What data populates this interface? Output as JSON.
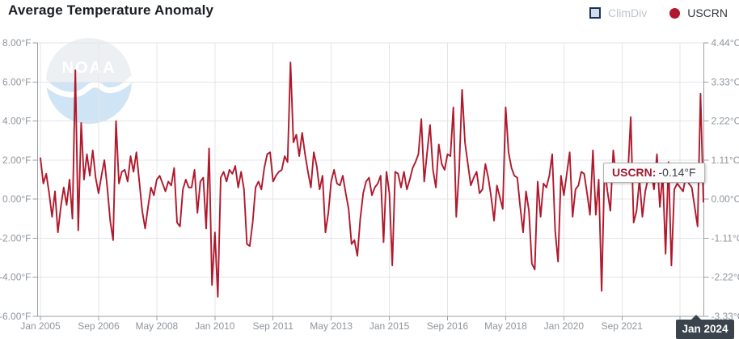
{
  "title": "Average Temperature Anomaly",
  "watermark": "NOAA",
  "legend": {
    "items": [
      {
        "id": "climdiv",
        "label": "ClimDiv",
        "swatch": "square",
        "color": "#cddcee",
        "border": "#1b3350",
        "state": "inactive"
      },
      {
        "id": "uscrn",
        "label": "USCRN",
        "swatch": "circle",
        "color": "#b0182c",
        "state": "active"
      }
    ]
  },
  "tooltip": {
    "series": "USCRN:",
    "value": "-0.14°F"
  },
  "crosshair": {
    "label": "Jan 2024"
  },
  "chart_data": {
    "type": "line",
    "title": "Average Temperature Anomaly",
    "x_start": "Jan 2005",
    "x_end": "Jan 2024",
    "x_interval": "monthly",
    "grid": true,
    "legend_position": "top-right",
    "y_left": {
      "unit": "°F",
      "range": [
        -6,
        8
      ],
      "labels": [
        "8.00°F",
        "6.00°F",
        "4.00°F",
        "2.00°F",
        "0.00°F",
        "-2.00°F",
        "-4.00°F",
        "-6.00°F"
      ]
    },
    "y_right": {
      "unit": "°C",
      "range": [
        -3.33,
        4.44
      ],
      "labels": [
        "4.44°C",
        "3.33°C",
        "2.22°C",
        "1.11°C",
        "0.00°C",
        "-1.11°C",
        "-2.22°C",
        "-3.33°C"
      ]
    },
    "x_ticks": [
      {
        "month_index": 0,
        "label": "Jan 2005"
      },
      {
        "month_index": 20,
        "label": "Sep 2006"
      },
      {
        "month_index": 40,
        "label": "May 2008"
      },
      {
        "month_index": 60,
        "label": "Jan 2010"
      },
      {
        "month_index": 80,
        "label": "Sep 2011"
      },
      {
        "month_index": 100,
        "label": "May 2013"
      },
      {
        "month_index": 120,
        "label": "Jan 2015"
      },
      {
        "month_index": 140,
        "label": "Sep 2016"
      },
      {
        "month_index": 160,
        "label": "May 2018"
      },
      {
        "month_index": 180,
        "label": "Jan 2020"
      },
      {
        "month_index": 200,
        "label": "Sep 2021"
      },
      {
        "month_index": 220,
        "label": ""
      }
    ],
    "highlight_point": {
      "x_label": "Jan 2024",
      "series": "USCRN",
      "value_f": -0.14
    },
    "series": [
      {
        "name": "USCRN",
        "color": "#b0182c",
        "unit": "°F",
        "visible": true,
        "values": [
          2.1,
          0.8,
          1.3,
          0.3,
          -0.9,
          0.4,
          -1.7,
          -0.4,
          0.6,
          -0.3,
          1.0,
          -1.0,
          6.6,
          -1.6,
          3.9,
          1.0,
          2.3,
          1.2,
          2.5,
          1.1,
          0.3,
          1.2,
          2.0,
          0.6,
          -1.1,
          -2.1,
          4.0,
          0.8,
          1.4,
          1.5,
          0.9,
          2.2,
          1.4,
          2.4,
          0.9,
          -0.6,
          -1.5,
          -0.4,
          0.6,
          0.2,
          1.0,
          1.2,
          0.8,
          0.4,
          0.9,
          0.7,
          1.6,
          -1.2,
          -1.4,
          0.5,
          1.0,
          0.6,
          0.6,
          1.5,
          -0.7,
          0.9,
          1.1,
          -1.5,
          2.6,
          -4.4,
          -1.7,
          -5.0,
          1.1,
          1.4,
          0.9,
          1.5,
          1.3,
          1.7,
          0.6,
          1.4,
          0.5,
          -2.3,
          -2.4,
          -1.2,
          0.6,
          0.9,
          0.5,
          1.6,
          2.3,
          2.4,
          0.9,
          1.2,
          1.4,
          1.5,
          2.2,
          1.9,
          7.0,
          2.9,
          3.3,
          2.2,
          3.4,
          2.3,
          1.4,
          0.6,
          2.4,
          1.7,
          0.5,
          1.2,
          -1.7,
          -0.7,
          0.9,
          1.5,
          0.8,
          0.7,
          1.2,
          0.3,
          -0.5,
          -2.3,
          -2.1,
          -2.9,
          -1.0,
          0.3,
          0.9,
          1.1,
          0.2,
          0.6,
          0.8,
          1.2,
          -2.2,
          1.4,
          0.3,
          -3.4,
          1.4,
          1.3,
          0.6,
          1.4,
          0.5,
          1.0,
          1.6,
          1.9,
          2.3,
          4.1,
          0.9,
          2.4,
          3.8,
          1.5,
          0.6,
          2.8,
          1.8,
          1.5,
          2.3,
          2.2,
          4.7,
          -0.9,
          1.5,
          5.6,
          2.9,
          1.8,
          0.7,
          1.1,
          1.4,
          0.3,
          0.5,
          1.8,
          1.1,
          0.1,
          -1.1,
          0.7,
          0.1,
          -0.5,
          4.7,
          2.4,
          1.6,
          1.2,
          1.1,
          -0.4,
          -1.7,
          0.4,
          -0.6,
          -3.3,
          -3.6,
          0.9,
          -0.9,
          0.8,
          0.6,
          1.2,
          2.3,
          -1.6,
          -3.2,
          1.2,
          0.2,
          1.3,
          2.4,
          -0.9,
          0.5,
          0.7,
          1.4,
          1.3,
          0.3,
          -0.8,
          2.5,
          -0.8,
          1.0,
          -4.7,
          1.6,
          0.4,
          -0.6,
          2.5,
          1.1,
          1.3,
          1.6,
          1.8,
          1.2,
          4.2,
          -1.2,
          -0.6,
          1.0,
          -0.9,
          0.4,
          1.1,
          1.4,
          0.5,
          2.3,
          -0.4,
          1.3,
          -2.8,
          1.9,
          -3.4,
          0.5,
          0.8,
          0.6,
          0.4,
          1.2,
          0.8,
          0.6,
          -0.4,
          -1.4,
          5.4,
          -0.14
        ]
      },
      {
        "name": "ClimDiv",
        "color": "#cddcee",
        "visible": false,
        "values": []
      }
    ]
  }
}
